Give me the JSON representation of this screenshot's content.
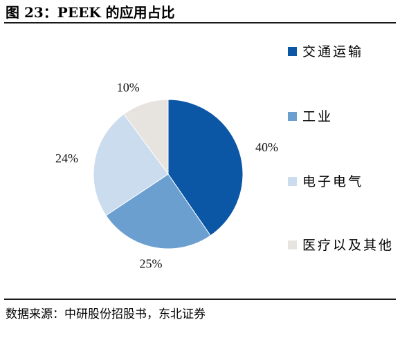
{
  "figure": {
    "title": "图 23：PEEK 的应用占比",
    "source": "数据来源：中研股份招股书，东北证券"
  },
  "chart_data": {
    "type": "pie",
    "title": "图 23：PEEK 的应用占比",
    "categories": [
      "交通运输",
      "工业",
      "电子电气",
      "医疗以及其他"
    ],
    "values": [
      40,
      25,
      24,
      10
    ],
    "labels": [
      "40%",
      "25%",
      "24%",
      "10%"
    ],
    "colors": [
      "#0b57a6",
      "#6a9fd0",
      "#cadcee",
      "#e7e4df"
    ],
    "legend_position": "right",
    "start_angle": "12 o'clock",
    "direction": "clockwise"
  }
}
